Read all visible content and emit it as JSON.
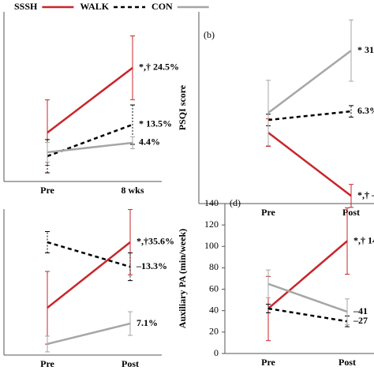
{
  "chart_data": [
    {
      "type": "line",
      "categories": [
        "Pre",
        "8 wks"
      ],
      "ylim": [
        0,
        100
      ],
      "series": [
        {
          "name": "SSSH",
          "color": "#c8262b",
          "dash": false,
          "values": [
            28.8,
            67
          ],
          "errors": [
            19.3,
            18.8
          ],
          "label": "*,† 24.5%"
        },
        {
          "name": "WALK",
          "color": "#000000",
          "dash": true,
          "values": [
            14.9,
            33.5
          ],
          "errors": [
            9.8,
            11.6
          ],
          "label": "* 13.5%"
        },
        {
          "name": "CON",
          "color": "#a6a6a6",
          "dash": false,
          "values": [
            17.2,
            22.8
          ],
          "errors": [
            5.8,
            3.5
          ],
          "label": "4.4%"
        }
      ]
    },
    {
      "type": "line",
      "panel_label": "(b)",
      "ylabel": "PSQI score",
      "categories": [
        "Pre",
        "Post"
      ],
      "ylim": [
        0,
        100
      ],
      "series": [
        {
          "color": "#c8262b",
          "dash": false,
          "values": [
            37,
            4
          ],
          "errors": [
            7.2,
            6
          ],
          "label": "*,†   –"
        },
        {
          "color": "#000000",
          "dash": true,
          "values": [
            43.6,
            48.1
          ],
          "errors": [
            3,
            3
          ],
          "label": "6.3%"
        },
        {
          "color": "#a6a6a6",
          "dash": false,
          "values": [
            47.3,
            79.8
          ],
          "errors": [
            17,
            16
          ],
          "label": "* 31"
        }
      ]
    },
    {
      "type": "line",
      "categories": [
        "Pre",
        "Post"
      ],
      "ylim": [
        0,
        100
      ],
      "series": [
        {
          "color": "#c8262b",
          "dash": false,
          "values": [
            32.4,
            77.3
          ],
          "errors": [
            24.9,
            22.4
          ],
          "label": "*,†35.6%"
        },
        {
          "color": "#000000",
          "dash": true,
          "values": [
            77.3,
            60.5
          ],
          "errors": [
            7.3,
            9.5
          ],
          "label": "–13.3%"
        },
        {
          "color": "#a6a6a6",
          "dash": false,
          "values": [
            7.6,
            21.6
          ],
          "errors": [
            5.4,
            8.1
          ],
          "label": "7.1%"
        }
      ]
    },
    {
      "type": "line",
      "panel_label": "(d)",
      "ylabel": "Auxiliary PA (min/week)",
      "categories": [
        "Pre",
        "Post"
      ],
      "ylim": [
        0,
        140
      ],
      "yticks": [
        0,
        20,
        40,
        60,
        80,
        100,
        120,
        140
      ],
      "series": [
        {
          "color": "#c8262b",
          "dash": false,
          "values": [
            42,
            105
          ],
          "errors": [
            30,
            31
          ],
          "label": "*,† 14"
        },
        {
          "color": "#000000",
          "dash": true,
          "values": [
            42,
            30
          ],
          "errors": [
            4,
            5
          ],
          "label": "–27"
        },
        {
          "color": "#a6a6a6",
          "dash": false,
          "values": [
            65,
            39
          ],
          "errors": [
            13,
            12
          ],
          "label": "–41"
        }
      ]
    }
  ]
}
